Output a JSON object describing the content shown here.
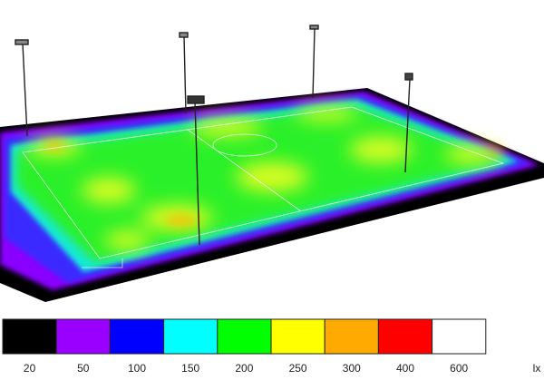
{
  "legend": {
    "items": [
      {
        "color": "#000000",
        "label": "20"
      },
      {
        "color": "#9a00ff",
        "label": "50"
      },
      {
        "color": "#0000ff",
        "label": "100"
      },
      {
        "color": "#00ffff",
        "label": "150"
      },
      {
        "color": "#00ff00",
        "label": "200"
      },
      {
        "color": "#ffff00",
        "label": "250"
      },
      {
        "color": "#ffaa00",
        "label": "300"
      },
      {
        "color": "#ff0000",
        "label": "400"
      },
      {
        "color": "#ffffff",
        "label": "600"
      }
    ],
    "unit": "lx"
  }
}
